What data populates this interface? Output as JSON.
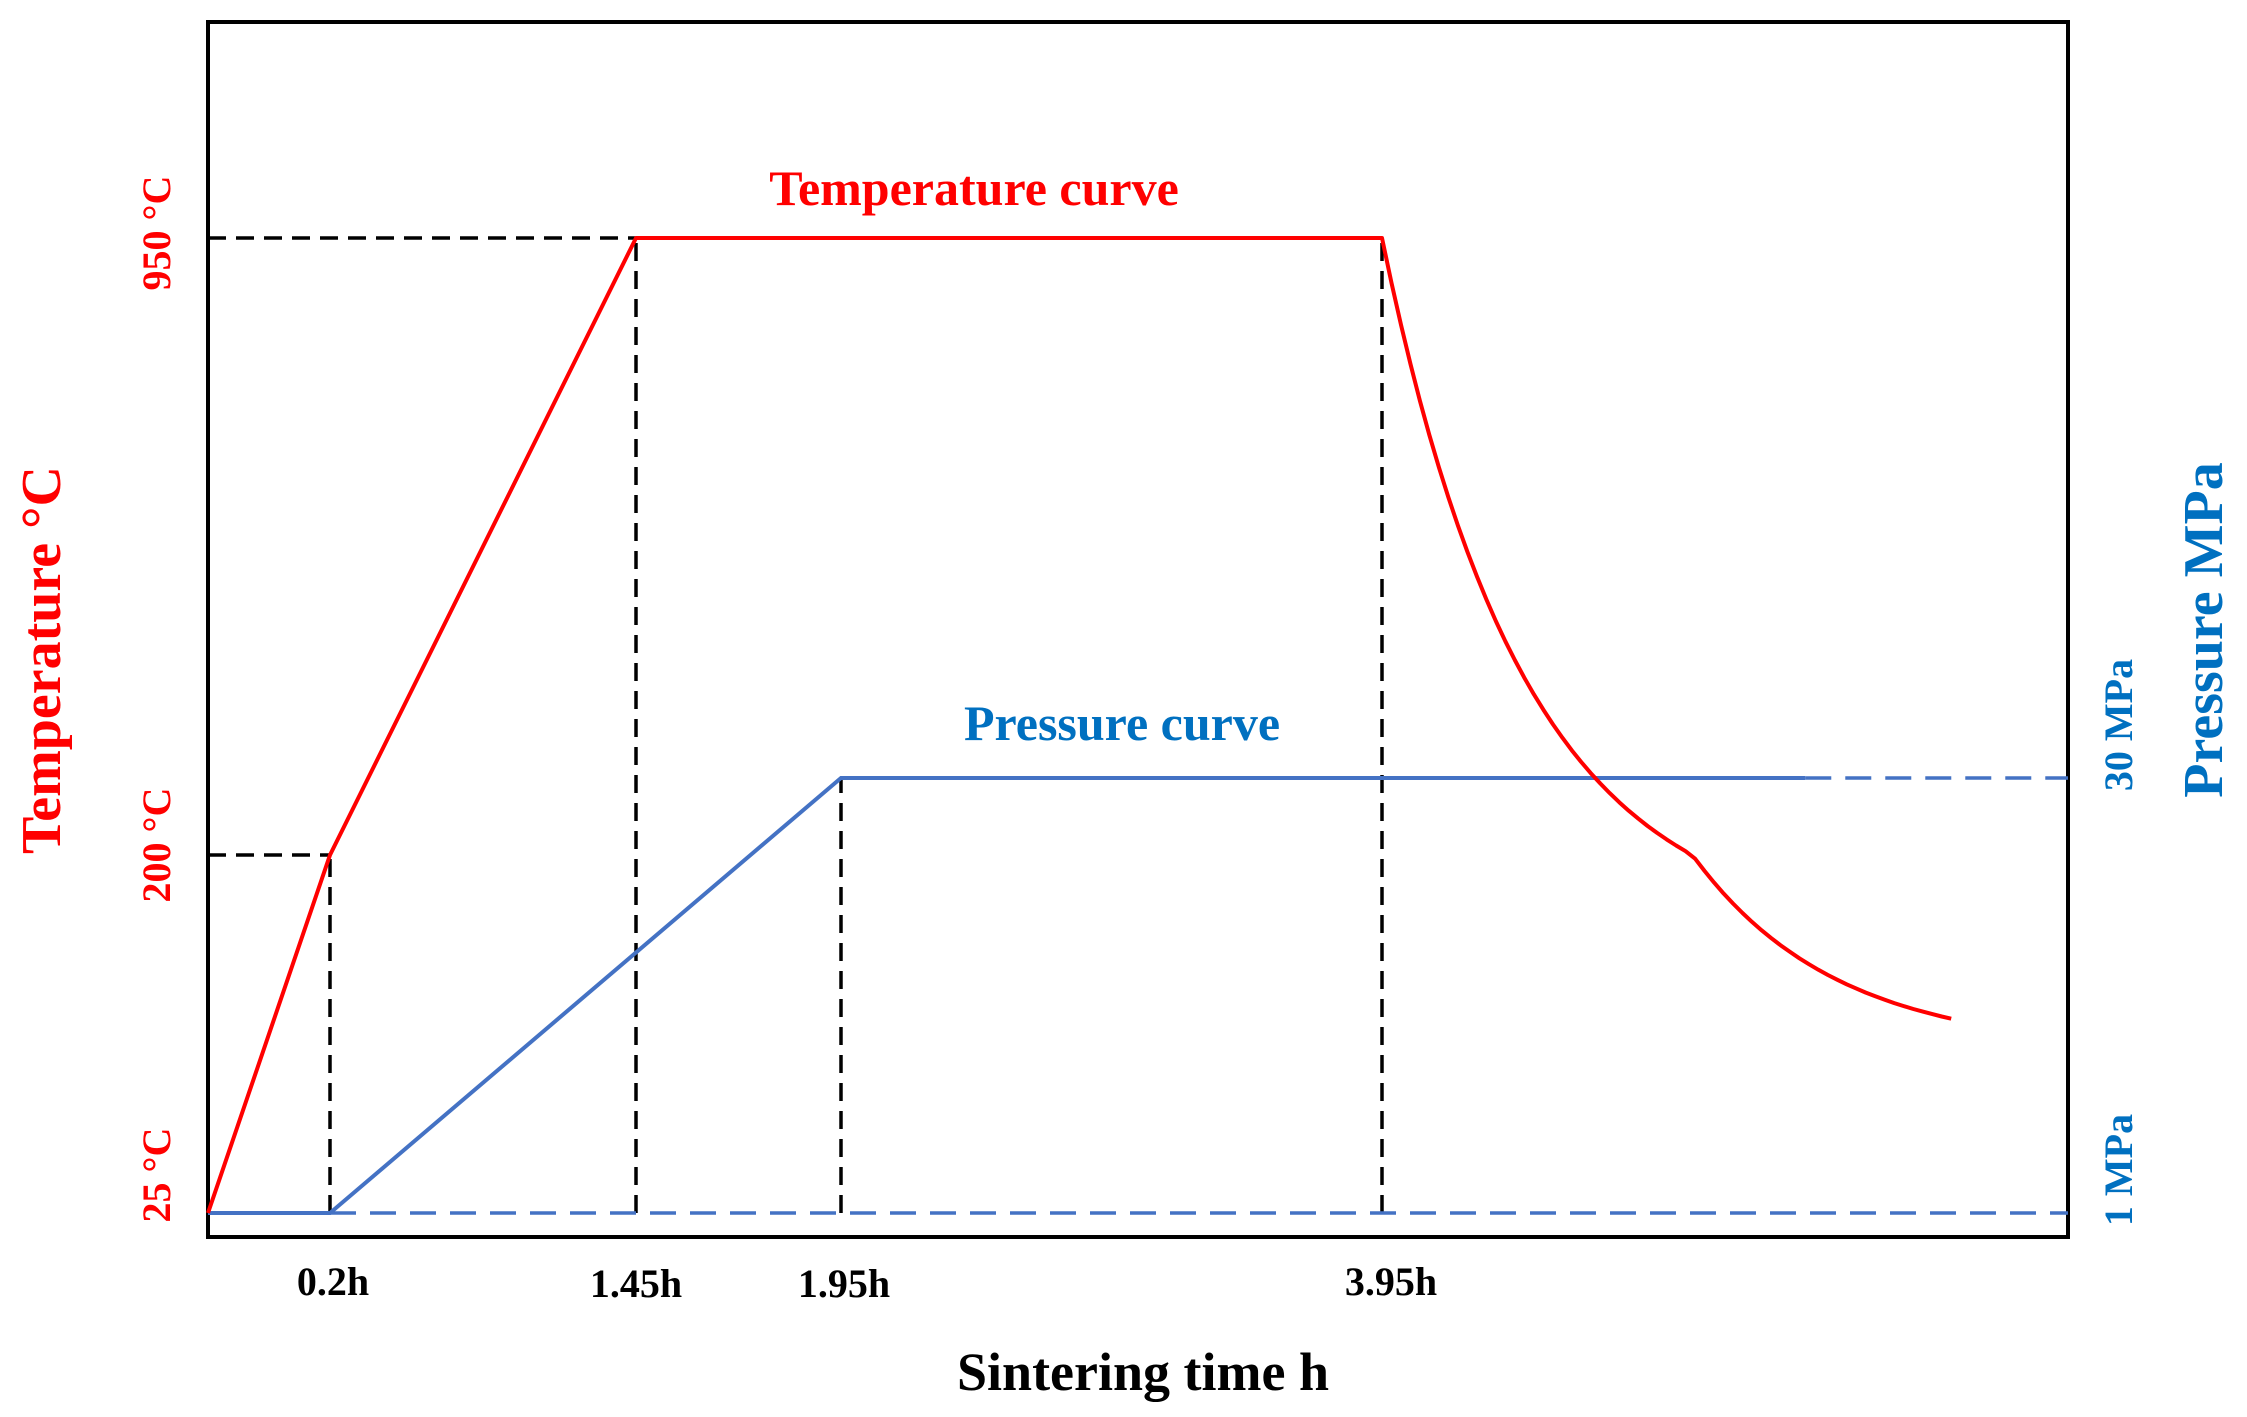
{
  "chart_data": {
    "type": "line",
    "xlabel": "Sintering time  h",
    "ylabel_left": "Temperature °C",
    "ylabel_right": "Pressure MPa",
    "x_ticks": [
      "0.2h",
      "1.45h",
      "1.95h",
      "3.95h"
    ],
    "y_left_ticks": [
      "25 °C",
      "200 °C",
      "950 °C"
    ],
    "y_right_ticks": [
      "1 MPa",
      "30 MPa"
    ],
    "series": [
      {
        "name": "Temperature curve",
        "color": "#ff0000",
        "points": [
          {
            "x": 0,
            "y": 25
          },
          {
            "x": 0.2,
            "y": 200
          },
          {
            "x": 1.45,
            "y": 950
          },
          {
            "x": 3.95,
            "y": 950
          }
        ],
        "cooling_end": {
          "x": 5.9,
          "y": 120
        }
      },
      {
        "name": "Pressure curve",
        "color": "#4472c4",
        "points": [
          {
            "x": 0,
            "y": 1
          },
          {
            "x": 0.2,
            "y": 1
          },
          {
            "x": 1.95,
            "y": 30
          },
          {
            "x": 5.4,
            "y": 30
          }
        ],
        "dashed_extension_to_x": 6.3
      }
    ],
    "reference_lines": [
      {
        "axis": "x",
        "value": 0.2,
        "to_y": 200
      },
      {
        "axis": "x",
        "value": 1.45,
        "to_y": 950
      },
      {
        "axis": "x",
        "value": 1.95,
        "to_y": 30
      },
      {
        "axis": "x",
        "value": 3.95,
        "to_y": 950
      },
      {
        "axis": "y_left",
        "value": 200,
        "to_x": 0.2
      },
      {
        "axis": "y_left",
        "value": 950,
        "to_x": 1.45
      },
      {
        "axis": "y_right",
        "value": 1
      },
      {
        "axis": "y_right",
        "value": 30
      }
    ],
    "colors": {
      "temperature": "#ff0000",
      "pressure_line": "#4472c4",
      "pressure_text": "#0070c0",
      "reference": "#000000"
    }
  }
}
